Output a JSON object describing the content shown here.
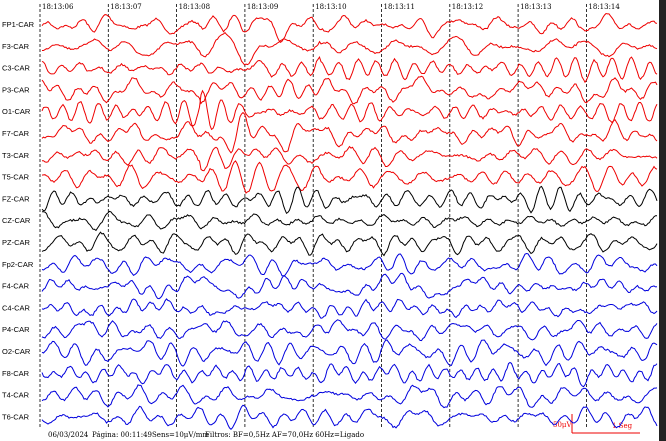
{
  "time_labels": [
    "18:13:06",
    "18:13:07",
    "18:13:08",
    "18:13:09",
    "18:13:10",
    "18:13:11",
    "18:13:12",
    "18:13:13",
    "18:13:14"
  ],
  "channels": [
    {
      "label": "FP1-CAR",
      "color": "#ee0000"
    },
    {
      "label": "F3-CAR",
      "color": "#ee0000"
    },
    {
      "label": "C3-CAR",
      "color": "#ee0000"
    },
    {
      "label": "P3-CAR",
      "color": "#ee0000"
    },
    {
      "label": "O1-CAR",
      "color": "#ee0000"
    },
    {
      "label": "F7-CAR",
      "color": "#ee0000"
    },
    {
      "label": "T3-CAR",
      "color": "#ee0000"
    },
    {
      "label": "T5-CAR",
      "color": "#ee0000"
    },
    {
      "label": "FZ-CAR",
      "color": "#000000"
    },
    {
      "label": "CZ-CAR",
      "color": "#000000"
    },
    {
      "label": "PZ-CAR",
      "color": "#000000"
    },
    {
      "label": "Fp2-CAR",
      "color": "#0000dd"
    },
    {
      "label": "F4-CAR",
      "color": "#0000dd"
    },
    {
      "label": "C4-CAR",
      "color": "#0000dd"
    },
    {
      "label": "P4-CAR",
      "color": "#0000dd"
    },
    {
      "label": "O2-CAR",
      "color": "#0000dd"
    },
    {
      "label": "F8-CAR",
      "color": "#0000dd"
    },
    {
      "label": "T4-CAR",
      "color": "#0000dd"
    },
    {
      "label": "T6-CAR",
      "color": "#0000dd"
    }
  ],
  "footer": {
    "date": "06/03/2024",
    "page": "Página: 00:11:49",
    "sensitivity": "Sens=10μV/mm",
    "filters": "Filtros: BF=0,5Hz AF=70,0Hz 60Hz=Ligado"
  },
  "scale": {
    "amplitude": "50μV",
    "time": "1 Seg"
  }
}
